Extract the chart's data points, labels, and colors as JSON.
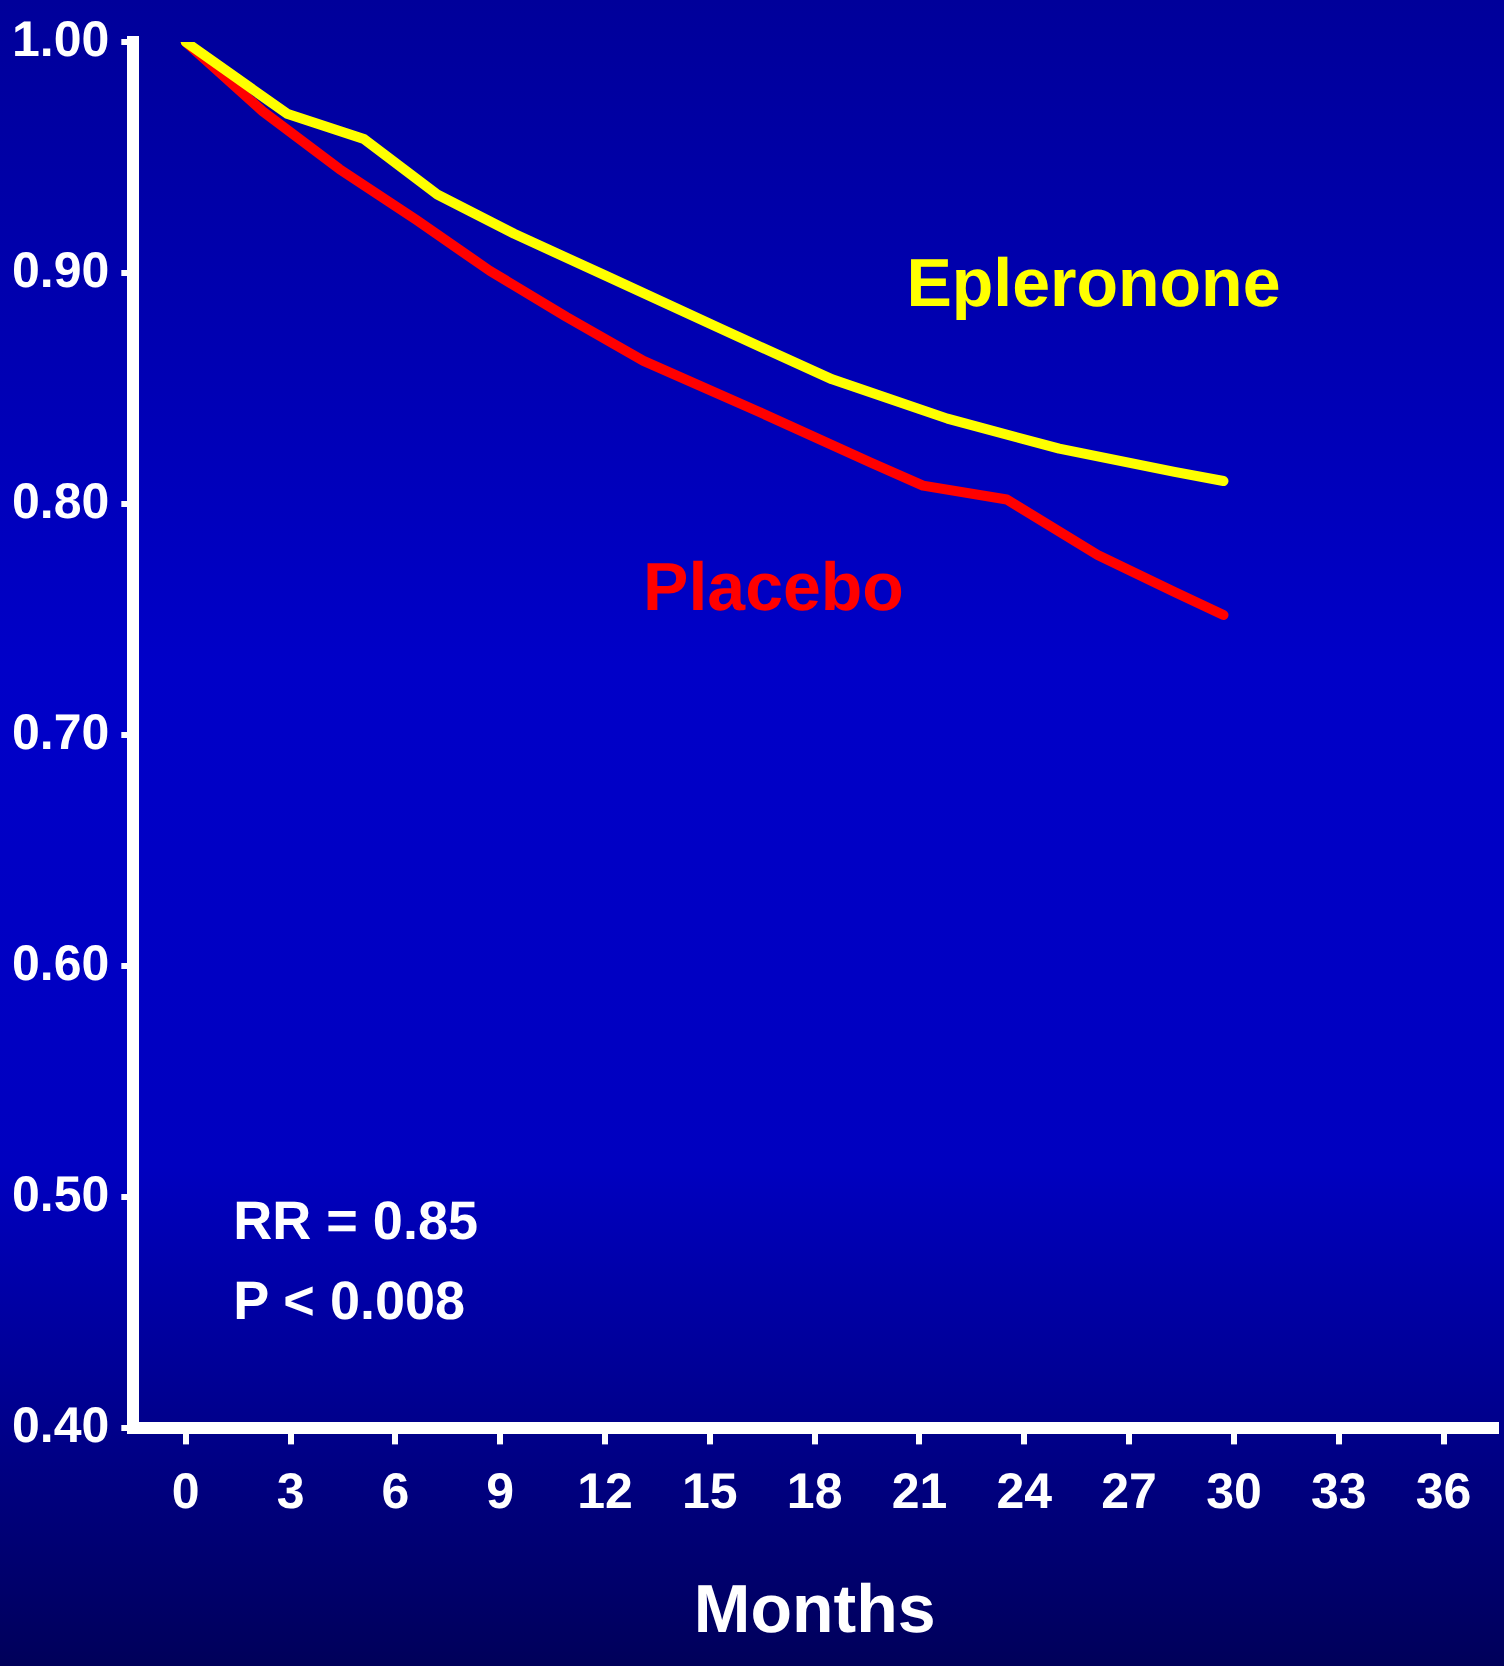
{
  "chart_data": {
    "type": "line",
    "xlabel": "Months",
    "xlim": [
      -1.5,
      37.5
    ],
    "xticks": [
      0,
      3,
      6,
      9,
      12,
      15,
      18,
      21,
      24,
      27,
      30,
      33,
      36
    ],
    "ylim": [
      0.4,
      1.0
    ],
    "yticks": [
      {
        "value": 0.4,
        "label": "0.40"
      },
      {
        "value": 0.5,
        "label": "0.50"
      },
      {
        "value": 0.6,
        "label": "0.60"
      },
      {
        "value": 0.7,
        "label": "0.70"
      },
      {
        "value": 0.8,
        "label": "0.80"
      },
      {
        "value": 0.9,
        "label": "0.90"
      },
      {
        "value": 1.0,
        "label": "1.00"
      }
    ],
    "grid": false,
    "legend": false,
    "marker": "none",
    "line_style": "solid",
    "annotations": [
      "RR = 0.85",
      "P < 0.008"
    ],
    "series": [
      {
        "name": "Epleronone",
        "color": "#ffff00",
        "x": [
          0,
          2.9,
          5.1,
          7.2,
          9.4,
          12.0,
          15.3,
          18.5,
          21.8,
          25.0,
          28.3,
          29.7
        ],
        "values": [
          1.0,
          0.969,
          0.958,
          0.934,
          0.917,
          0.899,
          0.876,
          0.854,
          0.837,
          0.824,
          0.814,
          0.81
        ]
      },
      {
        "name": "Placebo",
        "color": "#ff0000",
        "x": [
          0,
          2.2,
          4.4,
          6.6,
          8.7,
          10.9,
          13.1,
          16.4,
          19.6,
          21.1,
          23.5,
          26.1,
          28.3,
          29.7
        ],
        "values": [
          1.0,
          0.97,
          0.945,
          0.923,
          0.901,
          0.881,
          0.862,
          0.84,
          0.818,
          0.808,
          0.802,
          0.778,
          0.762,
          0.752
        ]
      }
    ]
  }
}
